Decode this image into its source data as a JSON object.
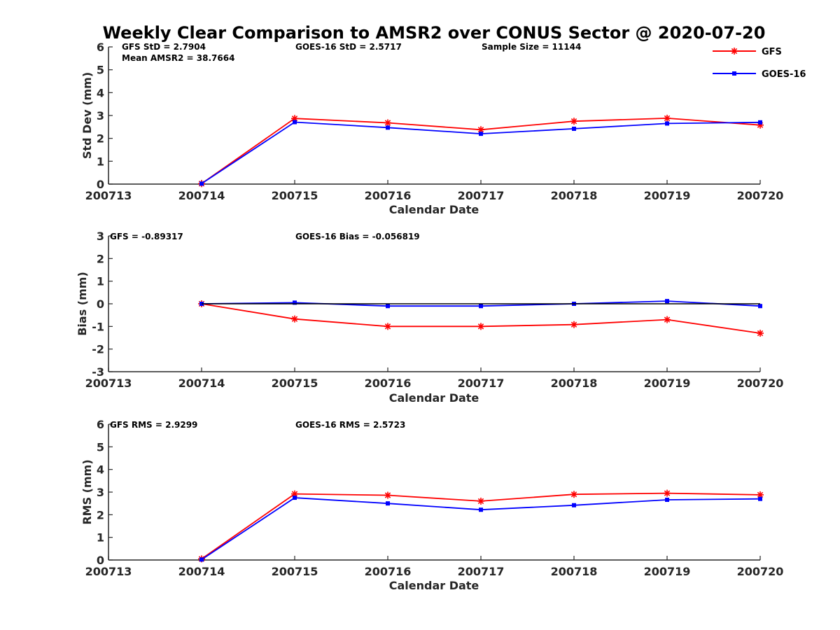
{
  "title": "Weekly Clear Comparison to AMSR2 over CONUS Sector @ 2020-07-20",
  "legend": [
    {
      "name": "GFS",
      "color": "#ff0000",
      "marker": "asterisk"
    },
    {
      "name": "GOES-16",
      "color": "#0000ff",
      "marker": "square"
    }
  ],
  "chart_data": [
    {
      "type": "line",
      "categories": [
        "200713",
        "200714",
        "200715",
        "200716",
        "200717",
        "200718",
        "200719",
        "200720"
      ],
      "xlabel": "Calendar Date",
      "ylabel": "Std Dev (mm)",
      "ylim": [
        0,
        6
      ],
      "yticks": [
        "0",
        "1",
        "2",
        "3",
        "4",
        "5",
        "6"
      ],
      "series": [
        {
          "name": "GFS",
          "color": "#ff0000",
          "values": [
            null,
            0.02,
            2.87,
            2.68,
            2.38,
            2.75,
            2.88,
            2.58
          ]
        },
        {
          "name": "GOES-16",
          "color": "#0000ff",
          "values": [
            null,
            0.02,
            2.71,
            2.47,
            2.2,
            2.42,
            2.65,
            2.7
          ]
        }
      ],
      "annotations": [
        "GFS StD = 2.7904",
        "Mean AMSR2 = 38.7664",
        "GOES-16 StD = 2.5717",
        "Sample Size = 11144"
      ]
    },
    {
      "type": "line",
      "categories": [
        "200713",
        "200714",
        "200715",
        "200716",
        "200717",
        "200718",
        "200719",
        "200720"
      ],
      "xlabel": "Calendar Date",
      "ylabel": "Bias (mm)",
      "ylim": [
        -3,
        3
      ],
      "yticks": [
        "-3",
        "-2",
        "-1",
        "0",
        "1",
        "2",
        "3"
      ],
      "series": [
        {
          "name": "GFS",
          "color": "#ff0000",
          "values": [
            null,
            0,
            -0.67,
            -1.0,
            -1.0,
            -0.92,
            -0.7,
            -1.3
          ]
        },
        {
          "name": "GOES-16",
          "color": "#0000ff",
          "values": [
            null,
            0,
            0.05,
            -0.1,
            -0.1,
            0.0,
            0.12,
            -0.1
          ]
        },
        {
          "color": "#000000",
          "values": [
            null,
            0,
            0,
            0,
            0,
            0,
            0,
            0
          ]
        }
      ],
      "annotations": [
        "GFS = -0.89317",
        "GOES-16 Bias  = -0.056819"
      ]
    },
    {
      "type": "line",
      "categories": [
        "200713",
        "200714",
        "200715",
        "200716",
        "200717",
        "200718",
        "200719",
        "200720"
      ],
      "xlabel": "Calendar Date",
      "ylabel": "RMS (mm)",
      "ylim": [
        0,
        6
      ],
      "yticks": [
        "0",
        "1",
        "2",
        "3",
        "4",
        "5",
        "6"
      ],
      "series": [
        {
          "name": "GFS",
          "color": "#ff0000",
          "values": [
            null,
            0.05,
            2.92,
            2.86,
            2.6,
            2.9,
            2.95,
            2.88
          ]
        },
        {
          "name": "GOES-16",
          "color": "#0000ff",
          "values": [
            null,
            0.02,
            2.75,
            2.5,
            2.22,
            2.42,
            2.66,
            2.7
          ]
        }
      ],
      "annotations": [
        "GFS RMS = 2.9299",
        "GOES-16 RMS = 2.5723"
      ]
    }
  ]
}
